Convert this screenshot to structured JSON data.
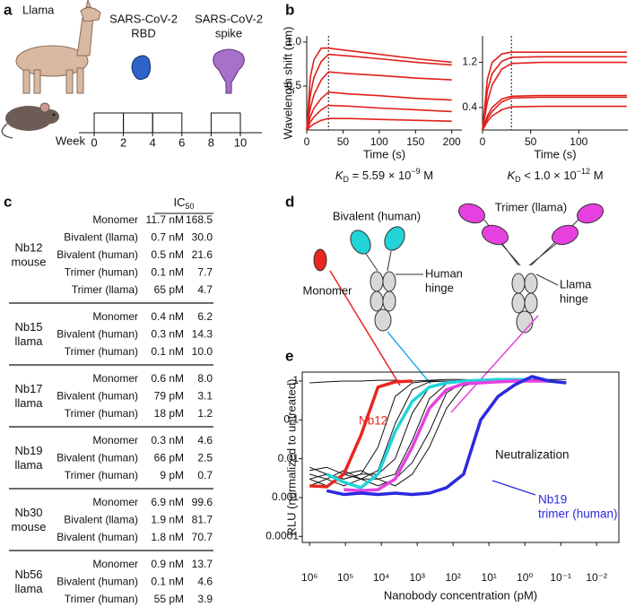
{
  "panel_labels": [
    "a",
    "b",
    "c",
    "d",
    "e"
  ],
  "panel_a": {
    "animal_label": "Llama",
    "antigens": [
      [
        "SARS-CoV-2",
        "RBD"
      ],
      [
        "SARS-CoV-2",
        "spike"
      ]
    ],
    "timeline": {
      "label": "Week",
      "ticks": [
        0,
        2,
        4,
        6,
        8,
        10
      ]
    }
  },
  "chart_data": [
    {
      "type": "line",
      "x": [
        0,
        5,
        10,
        20,
        30,
        60,
        100,
        150,
        200
      ],
      "series": [
        {
          "color": "#e0201c",
          "values": [
            0,
            0.6,
            0.8,
            0.93,
            0.93,
            0.9,
            0.86,
            0.81,
            0.77
          ]
        },
        {
          "color": "#e0201c",
          "values": [
            0,
            0.4,
            0.6,
            0.78,
            0.86,
            0.84,
            0.81,
            0.77,
            0.74
          ]
        },
        {
          "color": "#e0201c",
          "values": [
            0,
            0.25,
            0.4,
            0.57,
            0.66,
            0.64,
            0.62,
            0.59,
            0.57
          ]
        },
        {
          "color": "#e0201c",
          "values": [
            0,
            0.15,
            0.25,
            0.36,
            0.43,
            0.41,
            0.39,
            0.36,
            0.34
          ]
        },
        {
          "color": "#e0201c",
          "values": [
            0,
            0.09,
            0.15,
            0.23,
            0.28,
            0.27,
            0.25,
            0.23,
            0.21
          ]
        },
        {
          "color": "#e0201c",
          "values": [
            0,
            0.04,
            0.07,
            0.11,
            0.13,
            0.13,
            0.12,
            0.11,
            0.1
          ]
        }
      ],
      "xlim": [
        0,
        214
      ],
      "xticks": [
        0,
        50,
        100,
        150,
        200
      ],
      "ylim": [
        0,
        1.07
      ],
      "yticks": [
        0.5,
        {
          "value": 1,
          "label": "1.0"
        }
      ],
      "x_label": "Time (s)",
      "y_label": "Wavelength shift (nm)",
      "dissociation_start": 30,
      "kd": {
        "symbol": "K",
        "subscript": "D",
        "relation": " = 5.59 × 10",
        "exponent": "−9",
        "unit": " M"
      }
    },
    {
      "type": "line",
      "x": [
        0,
        5,
        10,
        20,
        30,
        60,
        100,
        150
      ],
      "series": [
        {
          "color": "#e0201c",
          "values": [
            0,
            0.9,
            1.2,
            1.35,
            1.38,
            1.38,
            1.38,
            1.38
          ]
        },
        {
          "color": "#e0201c",
          "values": [
            0,
            0.7,
            1.0,
            1.22,
            1.29,
            1.3,
            1.3,
            1.3
          ]
        },
        {
          "color": "#e0201c",
          "values": [
            0,
            0.5,
            0.8,
            1.08,
            1.18,
            1.2,
            1.2,
            1.2
          ]
        },
        {
          "color": "#e0201c",
          "values": [
            0,
            0.25,
            0.4,
            0.55,
            0.6,
            0.61,
            0.61,
            0.61
          ]
        },
        {
          "color": "#e0201c",
          "values": [
            0,
            0.2,
            0.33,
            0.5,
            0.57,
            0.58,
            0.58,
            0.58
          ]
        },
        {
          "color": "#e0201c",
          "values": [
            0,
            0.15,
            0.25,
            0.36,
            0.41,
            0.42,
            0.42,
            0.42
          ]
        }
      ],
      "xlim": [
        0,
        151
      ],
      "xticks": [
        0,
        50,
        100
      ],
      "ylim": [
        0,
        1.67
      ],
      "yticks": [
        0.4,
        1.2
      ],
      "x_label": "Time (s)",
      "dissociation_start": 30,
      "kd": {
        "symbol": "K",
        "subscript": "D",
        "relation": " < 1.0 × 10",
        "exponent": "−12",
        "unit": " M"
      }
    },
    {
      "type": "line",
      "log_x": true,
      "log_y": true,
      "x": [
        1000000,
        333333,
        111111,
        37037,
        12346,
        4115,
        1372,
        457,
        152,
        51,
        17,
        5.6,
        1.9,
        0.63,
        0.21,
        0.07
      ],
      "series": [
        {
          "color": "#111111",
          "values": [
            0.9,
            0.95,
            1.0,
            1.0,
            1.05,
            1.05,
            1.0,
            1.05,
            1.1,
            1.1,
            1.05,
            1.1,
            1.1,
            1.1,
            1.1,
            1.1
          ]
        },
        {
          "color": "#111111",
          "values": [
            0.003,
            0.004,
            0.003,
            0.004,
            0.02,
            0.4,
            0.9,
            1.0,
            1.0,
            1.05,
            1.05,
            1.0,
            null,
            null,
            null,
            null
          ]
        },
        {
          "color": "#111111",
          "values": [
            0.004,
            0.003,
            0.005,
            0.003,
            0.005,
            0.08,
            0.6,
            0.95,
            1.0,
            1.0,
            1.05,
            1.05,
            1.1,
            null,
            null,
            null
          ]
        },
        {
          "color": "#111111",
          "values": [
            0.006,
            0.004,
            0.003,
            0.004,
            0.004,
            0.01,
            0.15,
            0.7,
            0.95,
            1.0,
            1.0,
            1.05,
            1.05,
            null,
            null,
            null
          ]
        },
        {
          "color": "#111111",
          "values": [
            0.002,
            0.003,
            0.002,
            0.003,
            0.003,
            0.004,
            0.03,
            0.35,
            0.85,
            1.0,
            1.0,
            1.05,
            1.1,
            1.1,
            null,
            null
          ]
        },
        {
          "color": "#111111",
          "values": [
            0.005,
            0.006,
            0.004,
            0.003,
            0.002,
            0.003,
            0.008,
            0.05,
            0.5,
            0.9,
            1.0,
            1.0,
            1.05,
            1.1,
            null,
            null
          ]
        },
        {
          "color": "#111111",
          "values": [
            0.003,
            0.002,
            0.004,
            0.005,
            0.003,
            0.002,
            0.004,
            0.02,
            0.2,
            0.75,
            0.95,
            1.0,
            1.05,
            1.05,
            1.1,
            null
          ]
        },
        {
          "color": "#e8261f",
          "values": [
            0.002,
            0.0019,
            0.004,
            0.04,
            0.7,
            0.95,
            1.0,
            null,
            null,
            null,
            null,
            null,
            null,
            null,
            null,
            null
          ]
        },
        {
          "color": "#22d3d8",
          "values": [
            null,
            0.004,
            0.0025,
            0.0018,
            0.004,
            0.05,
            0.3,
            0.7,
            0.9,
            1.0,
            1.05,
            1.1,
            1.1,
            1.1,
            null,
            null
          ]
        },
        {
          "color": "#e640e0",
          "values": [
            null,
            null,
            0.0016,
            0.0015,
            0.0016,
            0.003,
            0.02,
            0.2,
            0.6,
            0.85,
            0.9,
            0.95,
            1.0,
            1.0,
            1.0,
            null
          ]
        },
        {
          "color": "#2a2ae0",
          "values": [
            null,
            0.0015,
            0.0012,
            0.0013,
            0.0012,
            0.0013,
            0.0012,
            0.0013,
            0.0018,
            0.004,
            0.1,
            0.4,
            0.8,
            1.3,
            1.0,
            0.9
          ]
        }
      ],
      "xlim": [
        1600000,
        0.0024
      ],
      "xticks": [
        {
          "value": 1000000,
          "label": "10⁶"
        },
        {
          "value": 100000,
          "label": "10⁵"
        },
        {
          "value": 10000,
          "label": "10⁴"
        },
        {
          "value": 1000,
          "label": "10³"
        },
        {
          "value": 100,
          "label": "10²"
        },
        {
          "value": 10,
          "label": "10¹"
        },
        {
          "value": 1,
          "label": "10⁰"
        },
        {
          "value": 0.1,
          "label": "10⁻¹"
        },
        {
          "value": 0.01,
          "label": "10⁻²"
        }
      ],
      "ylim": [
        7e-05,
        1.7
      ],
      "yticks": [
        1,
        0.1,
        0.01,
        0.001,
        0.0001
      ],
      "x_label": "Nanobody concentration (pM)",
      "y_label": "RLU (normalized to untreated)",
      "annotations": [
        "Nb12",
        "Neutralization",
        "Nb19",
        "trimer (human)"
      ]
    }
  ],
  "table": {
    "header": {
      "main": "IC",
      "sub": "50"
    },
    "groups": [
      {
        "name": [
          "Nb12",
          "mouse"
        ],
        "rows": [
          [
            "Monomer",
            "11.7 nM",
            "168.5"
          ],
          [
            "Bivalent (llama)",
            "0.7 nM",
            "30.0"
          ],
          [
            "Bivalent (human)",
            "0.5 nM",
            "21.6"
          ],
          [
            "Trimer (human)",
            "0.1 nM",
            "7.7"
          ],
          [
            "Trimer (llama)",
            "65 pM",
            "4.7"
          ]
        ]
      },
      {
        "name": [
          "Nb15",
          "llama"
        ],
        "rows": [
          [
            "Monomer",
            "0.4 nM",
            "6.2"
          ],
          [
            "Bivalent (human)",
            "0.3 nM",
            "14.3"
          ],
          [
            "Trimer (human)",
            "0.1 nM",
            "10.0"
          ]
        ]
      },
      {
        "name": [
          "Nb17",
          "llama"
        ],
        "rows": [
          [
            "Monomer",
            "0.6 nM",
            "8.0"
          ],
          [
            "Bivalent (human)",
            "79 pM",
            "3.1"
          ],
          [
            "Trimer (human)",
            "18 pM",
            "1.2"
          ]
        ]
      },
      {
        "name": [
          "Nb19",
          "llama"
        ],
        "rows": [
          [
            "Monomer",
            "0.3 nM",
            "4.6"
          ],
          [
            "Bivalent (human)",
            "66 pM",
            "2.5"
          ],
          [
            "Trimer (human)",
            "9 pM",
            "0.7"
          ]
        ]
      },
      {
        "name": [
          "Nb30",
          "mouse"
        ],
        "rows": [
          [
            "Monomer",
            "6.9 nM",
            "99.6"
          ],
          [
            "Bivalent (llama)",
            "1.9 nM",
            "81.7"
          ],
          [
            "Bivalent (human)",
            "1.8 nM",
            "70.7"
          ]
        ]
      },
      {
        "name": [
          "Nb56",
          "llama"
        ],
        "rows": [
          [
            "Monomer",
            "0.9 nM",
            "13.7"
          ],
          [
            "Bivalent (human)",
            "0.1 nM",
            "4.6"
          ],
          [
            "Trimer (human)",
            "55 pM",
            "3.9"
          ]
        ]
      }
    ]
  },
  "panel_d": {
    "bivalent": "Bivalent (human)",
    "trimer": "Trimer (llama)",
    "monomer": "Monomer",
    "human_hinge": [
      "Human",
      "hinge"
    ],
    "llama_hinge": [
      "Llama",
      "hinge"
    ]
  }
}
